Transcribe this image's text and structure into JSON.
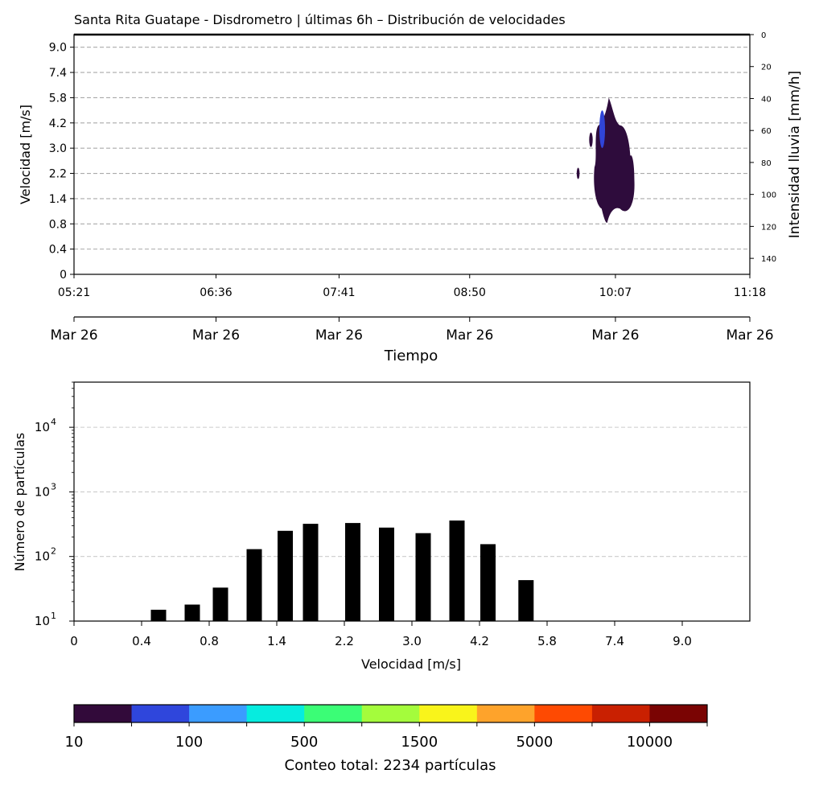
{
  "colors": {
    "raster": "#2e0c3c",
    "raster_core": "#3045d8",
    "bars": "#000000",
    "grid_top": "#aaaaaa",
    "grid_bottom": "#cccccc",
    "colorbar": [
      "#320a3a",
      "#2f46dc",
      "#3b9cff",
      "#06ecdf",
      "#3bfd76",
      "#a4fc3c",
      "#f9f41b",
      "#fea32b",
      "#fe4a02",
      "#c92001",
      "#7a0403"
    ]
  },
  "chart_data": [
    {
      "type": "heatmap",
      "title": "Santa Rita Guatape - Disdrometro | últimas 6h – Distribución de velocidades",
      "xlabel": "Tiempo",
      "ylabel": "Velocidad [m/s]",
      "y2label": "Intensidad lluvia [mm/h]",
      "x_ticks_time": [
        "05:21",
        "06:36",
        "07:41",
        "08:50",
        "10:07",
        "11:18"
      ],
      "x_ticks_date": [
        "Mar 26",
        "Mar 26",
        "Mar 26",
        "Mar 26",
        "Mar 26",
        "Mar 26"
      ],
      "y_ticks": [
        "0",
        "0.4",
        "0.8",
        "1.4",
        "2.2",
        "3.0",
        "4.2",
        "5.8",
        "7.4",
        "9.0"
      ],
      "y2_ticks": [
        "0",
        "20",
        "40",
        "60",
        "80",
        "100",
        "120",
        "140"
      ],
      "y2_range": [
        0,
        150
      ],
      "grid": "horizontal dashed",
      "rain_event": {
        "time_span": [
          "09:50",
          "10:17"
        ],
        "peak_time": "10:00",
        "velocity_range": [
          0.8,
          5.8
        ],
        "dominant_count_class": "10-100",
        "core_count_class": "100-500",
        "core_velocity_range": [
          3.0,
          5.0
        ]
      }
    },
    {
      "type": "bar",
      "xlabel": "Velocidad [m/s]",
      "ylabel": "Número de partículas",
      "y_scale": "log",
      "ylim": [
        10,
        50000
      ],
      "x_tick_labels": [
        "0",
        "0.4",
        "0.8",
        "1.4",
        "2.2",
        "3.0",
        "4.2",
        "5.8",
        "7.4",
        "9.0"
      ],
      "y_tick_labels": [
        "10",
        "10",
        "10",
        "10"
      ],
      "y_tick_exponents": [
        "1",
        "2",
        "3",
        "4"
      ],
      "categories": [
        "0.5",
        "0.7",
        "0.9",
        "1.2",
        "1.5",
        "1.8",
        "2.3",
        "2.7",
        "3.2",
        "3.8",
        "4.4",
        "5.3"
      ],
      "values": [
        15,
        18,
        33,
        130,
        250,
        320,
        330,
        280,
        230,
        360,
        155,
        43
      ],
      "grid": "horizontal dashed"
    }
  ],
  "colorbar": {
    "labels": [
      "10",
      "100",
      "500",
      "1500",
      "5000",
      "10000"
    ],
    "caption": "Conteo total: 2234 partículas"
  }
}
